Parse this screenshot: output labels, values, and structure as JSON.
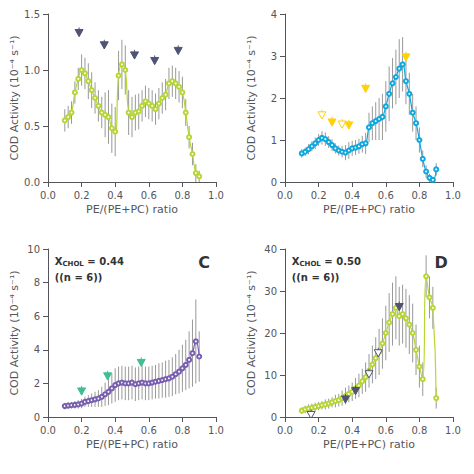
{
  "chart_data": [
    {
      "type": "line",
      "marker": "emptyCircle",
      "grid": false,
      "xlabel": "PE/(PE+PC) ratio",
      "ylabel": "COD Activity (10⁻⁴ s⁻¹)",
      "xlim": [
        0,
        1
      ],
      "ylim": [
        0,
        1.5
      ],
      "xticks": [
        {
          "value": 0,
          "label": "0.0"
        },
        0.2,
        0.4,
        0.6,
        0.8,
        {
          "value": 1,
          "label": "1.0"
        }
      ],
      "yticks": [
        {
          "value": 0,
          "label": "0.0"
        },
        0.5,
        {
          "value": 1.0,
          "label": "1.0"
        },
        1.5
      ],
      "arrows": [
        {
          "x": 0.185,
          "y": 1.38,
          "filled": true
        },
        {
          "x": 0.335,
          "y": 1.27,
          "filled": true
        },
        {
          "x": 0.515,
          "y": 1.18,
          "filled": true
        },
        {
          "x": 0.635,
          "y": 1.13,
          "filled": true
        },
        {
          "x": 0.775,
          "y": 1.22,
          "filled": true
        }
      ],
      "x": [
        0.1,
        0.12,
        0.14,
        0.16,
        0.18,
        0.2,
        0.22,
        0.24,
        0.26,
        0.28,
        0.3,
        0.32,
        0.34,
        0.36,
        0.38,
        0.4,
        0.42,
        0.44,
        0.46,
        0.48,
        0.5,
        0.52,
        0.54,
        0.56,
        0.58,
        0.6,
        0.62,
        0.64,
        0.66,
        0.68,
        0.7,
        0.72,
        0.74,
        0.76,
        0.78,
        0.8,
        0.82,
        0.84,
        0.86,
        0.88,
        0.9
      ],
      "values": [
        0.55,
        0.58,
        0.62,
        0.8,
        0.92,
        1.0,
        0.97,
        0.9,
        0.82,
        0.75,
        0.68,
        0.62,
        0.6,
        0.58,
        0.48,
        0.45,
        0.95,
        1.05,
        1.0,
        0.62,
        0.58,
        0.62,
        0.63,
        0.68,
        0.72,
        0.7,
        0.68,
        0.65,
        0.7,
        0.75,
        0.78,
        0.88,
        0.9,
        0.88,
        0.85,
        0.8,
        0.62,
        0.4,
        0.25,
        0.08,
        0.05
      ],
      "errors": [
        0.1,
        0.1,
        0.1,
        0.1,
        0.1,
        0.14,
        0.14,
        0.16,
        0.16,
        0.14,
        0.14,
        0.14,
        0.2,
        0.24,
        0.22,
        0.22,
        0.22,
        0.22,
        0.22,
        0.2,
        0.18,
        0.16,
        0.16,
        0.14,
        0.14,
        0.14,
        0.14,
        0.14,
        0.14,
        0.14,
        0.14,
        0.14,
        0.14,
        0.14,
        0.14,
        0.14,
        0.12,
        0.1,
        0.1,
        0.08,
        0.05
      ]
    },
    {
      "type": "line",
      "marker": "emptyCircle",
      "grid": false,
      "xlabel": "PE/(PE+PC) ratio",
      "ylabel": "COD Activity (10⁻⁴ s⁻¹)",
      "xlim": [
        0,
        1
      ],
      "ylim": [
        0,
        4
      ],
      "xticks": [
        {
          "value": 0,
          "label": "0.0"
        },
        0.2,
        0.4,
        0.6,
        0.8,
        {
          "value": 1,
          "label": "1.0"
        }
      ],
      "yticks": [
        0,
        1,
        2,
        3,
        4
      ],
      "arrows": [
        {
          "x": 0.22,
          "y": 1.72,
          "filled": false
        },
        {
          "x": 0.28,
          "y": 1.55,
          "filled": true
        },
        {
          "x": 0.34,
          "y": 1.5,
          "filled": false
        },
        {
          "x": 0.38,
          "y": 1.48,
          "filled": true
        },
        {
          "x": 0.48,
          "y": 2.35,
          "filled": true
        },
        {
          "x": 0.72,
          "y": 3.1,
          "filled": true
        }
      ],
      "x": [
        0.1,
        0.12,
        0.14,
        0.16,
        0.18,
        0.2,
        0.22,
        0.24,
        0.26,
        0.28,
        0.3,
        0.32,
        0.34,
        0.36,
        0.38,
        0.4,
        0.42,
        0.44,
        0.46,
        0.48,
        0.5,
        0.52,
        0.54,
        0.56,
        0.58,
        0.6,
        0.62,
        0.64,
        0.66,
        0.68,
        0.7,
        0.72,
        0.74,
        0.76,
        0.78,
        0.8,
        0.82,
        0.84,
        0.86,
        0.88,
        0.9
      ],
      "values": [
        0.68,
        0.72,
        0.78,
        0.85,
        0.92,
        1.0,
        1.05,
        1.02,
        0.95,
        0.88,
        0.8,
        0.75,
        0.72,
        0.7,
        0.75,
        0.8,
        0.82,
        0.85,
        0.9,
        0.92,
        1.3,
        1.4,
        1.45,
        1.5,
        1.55,
        1.8,
        2.1,
        2.35,
        2.5,
        2.7,
        2.8,
        2.4,
        2.1,
        1.65,
        1.4,
        1.0,
        0.55,
        0.25,
        0.1,
        0.05,
        0.3
      ],
      "errors": [
        0.1,
        0.1,
        0.12,
        0.12,
        0.14,
        0.14,
        0.16,
        0.16,
        0.14,
        0.14,
        0.12,
        0.12,
        0.14,
        0.18,
        0.2,
        0.18,
        0.18,
        0.18,
        0.2,
        0.25,
        0.35,
        0.4,
        0.45,
        0.5,
        0.55,
        0.6,
        0.65,
        0.6,
        0.65,
        0.7,
        0.65,
        0.55,
        0.5,
        0.45,
        0.4,
        0.3,
        0.2,
        0.15,
        0.1,
        0.05,
        0.15
      ]
    },
    {
      "type": "line",
      "marker": "emptyCircle",
      "grid": false,
      "label": "C",
      "annotations": [
        {
          "text": "X",
          "subscript": "CHOL",
          "after": " = 0.44"
        },
        {
          "text": "((n = 6))"
        }
      ],
      "xlabel": "PE/(PE+PC) ratio",
      "ylabel": "COD Activity (10⁻⁴ s⁻¹)",
      "xlim": [
        0,
        1
      ],
      "ylim": [
        0,
        10
      ],
      "xticks": [
        {
          "value": 0,
          "label": "0.0"
        },
        0.2,
        0.4,
        0.6,
        0.8,
        {
          "value": 1,
          "label": "1.0"
        }
      ],
      "yticks": [
        0,
        2,
        4,
        6,
        8,
        10
      ],
      "arrows": [
        {
          "x": 0.2,
          "y": 1.85,
          "filled": true
        },
        {
          "x": 0.355,
          "y": 2.75,
          "filled": true
        },
        {
          "x": 0.555,
          "y": 3.55,
          "filled": true
        }
      ],
      "x": [
        0.1,
        0.12,
        0.14,
        0.16,
        0.18,
        0.2,
        0.22,
        0.24,
        0.26,
        0.28,
        0.3,
        0.32,
        0.34,
        0.36,
        0.38,
        0.4,
        0.42,
        0.44,
        0.46,
        0.48,
        0.5,
        0.52,
        0.54,
        0.56,
        0.58,
        0.6,
        0.62,
        0.64,
        0.66,
        0.68,
        0.7,
        0.72,
        0.74,
        0.76,
        0.78,
        0.8,
        0.82,
        0.84,
        0.86,
        0.88,
        0.9
      ],
      "values": [
        0.65,
        0.68,
        0.7,
        0.72,
        0.75,
        0.8,
        0.9,
        0.95,
        1.0,
        1.05,
        1.1,
        1.2,
        1.35,
        1.5,
        1.7,
        1.9,
        2.0,
        2.05,
        2.0,
        2.0,
        2.05,
        1.95,
        2.0,
        2.05,
        2.0,
        2.0,
        2.05,
        2.1,
        2.15,
        2.2,
        2.25,
        2.3,
        2.4,
        2.55,
        2.7,
        2.9,
        3.1,
        3.4,
        3.8,
        4.5,
        3.6
      ],
      "errors": [
        0.2,
        0.2,
        0.2,
        0.22,
        0.25,
        0.28,
        0.3,
        0.35,
        0.4,
        0.45,
        0.5,
        0.6,
        0.7,
        0.8,
        0.9,
        1.0,
        1.0,
        1.0,
        1.0,
        1.0,
        1.0,
        1.0,
        1.0,
        1.0,
        1.0,
        1.0,
        1.0,
        1.0,
        1.05,
        1.05,
        1.1,
        1.1,
        1.15,
        1.2,
        1.3,
        1.4,
        1.5,
        1.7,
        2.0,
        2.5,
        1.5
      ]
    },
    {
      "type": "line",
      "marker": "emptyCircle",
      "grid": false,
      "label": "D",
      "annotations": [
        {
          "text": "X",
          "subscript": "CHOL",
          "after": " = 0.50"
        },
        {
          "text": "((n = 6))"
        }
      ],
      "xlabel": "PE/(PE+PC) ratio",
      "ylabel": "COD Activity (10⁻⁴ s⁻¹)",
      "xlim": [
        0,
        1
      ],
      "ylim": [
        0,
        40
      ],
      "xticks": [
        {
          "value": 0,
          "label": "0.0"
        },
        0.2,
        0.4,
        0.6,
        0.8,
        {
          "value": 1,
          "label": "1.0"
        }
      ],
      "yticks": [
        0,
        10,
        20,
        30,
        40
      ],
      "arrows": [
        {
          "x": 0.155,
          "y": 1.8,
          "filled": false
        },
        {
          "x": 0.36,
          "y": 5.5,
          "filled": true
        },
        {
          "x": 0.42,
          "y": 7.5,
          "filled": true
        },
        {
          "x": 0.5,
          "y": 11.5,
          "filled": false
        },
        {
          "x": 0.555,
          "y": 16.5,
          "filled": false
        },
        {
          "x": 0.68,
          "y": 27.5,
          "filled": true
        }
      ],
      "x": [
        0.1,
        0.12,
        0.14,
        0.16,
        0.18,
        0.2,
        0.22,
        0.24,
        0.26,
        0.28,
        0.3,
        0.32,
        0.34,
        0.36,
        0.38,
        0.4,
        0.42,
        0.44,
        0.46,
        0.48,
        0.5,
        0.52,
        0.54,
        0.56,
        0.58,
        0.6,
        0.62,
        0.64,
        0.66,
        0.68,
        0.7,
        0.72,
        0.74,
        0.76,
        0.78,
        0.8,
        0.82,
        0.84,
        0.86,
        0.88,
        0.9
      ],
      "values": [
        1.5,
        1.8,
        2.0,
        2.2,
        2.4,
        2.6,
        2.8,
        3.0,
        3.2,
        3.5,
        3.8,
        4.0,
        4.5,
        5.0,
        5.5,
        6.0,
        6.8,
        7.5,
        8.5,
        9.5,
        11.0,
        12.5,
        14.0,
        15.5,
        17.5,
        20.0,
        22.5,
        24.5,
        26.0,
        24.0,
        24.5,
        23.5,
        22.0,
        20.0,
        16.0,
        12.0,
        9.0,
        33.5,
        28.5,
        26.0,
        4.5
      ],
      "errors": [
        0.8,
        0.9,
        1.0,
        1.0,
        1.0,
        1.0,
        1.0,
        1.2,
        1.2,
        1.2,
        1.5,
        1.5,
        1.8,
        2.0,
        2.0,
        2.2,
        2.5,
        2.8,
        3.0,
        3.5,
        4.0,
        4.5,
        5.0,
        5.5,
        6.0,
        6.5,
        7.0,
        7.5,
        7.5,
        7.0,
        7.0,
        7.0,
        7.0,
        7.0,
        6.0,
        5.0,
        4.0,
        5.0,
        5.0,
        5.0,
        2.5
      ]
    }
  ]
}
